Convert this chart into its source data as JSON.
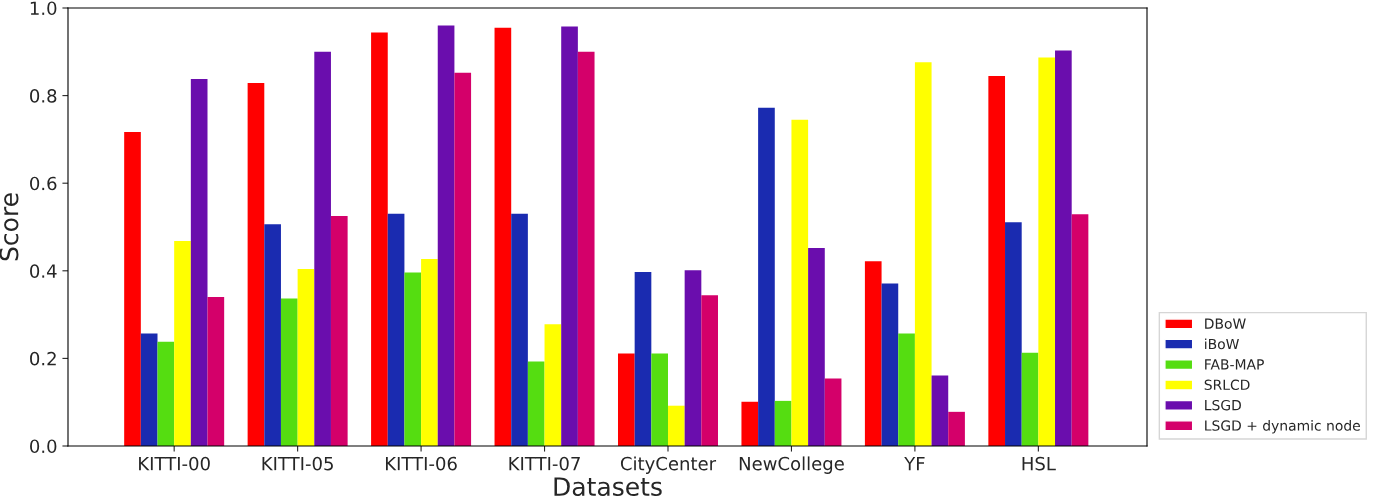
{
  "chart_data": {
    "type": "bar",
    "xlabel": "Datasets",
    "ylabel": "Score",
    "categories": [
      "KITTI-00",
      "KITTI-05",
      "KITTI-06",
      "KITTI-07",
      "CityCenter",
      "NewCollege",
      "YF",
      "HSL"
    ],
    "series": [
      {
        "name": "DBoW",
        "color": "#ff0000",
        "values": [
          0.717,
          0.829,
          0.944,
          0.955,
          0.211,
          0.101,
          0.422,
          0.845
        ]
      },
      {
        "name": "iBoW",
        "color": "#1a2bb0",
        "values": [
          0.257,
          0.506,
          0.53,
          0.53,
          0.397,
          0.772,
          0.371,
          0.511
        ]
      },
      {
        "name": "FAB-MAP",
        "color": "#55dd11",
        "values": [
          0.238,
          0.337,
          0.396,
          0.193,
          0.211,
          0.103,
          0.257,
          0.213
        ]
      },
      {
        "name": "SRLCD",
        "color": "#ffff00",
        "values": [
          0.468,
          0.404,
          0.427,
          0.278,
          0.092,
          0.745,
          0.876,
          0.887
        ]
      },
      {
        "name": "LSGD",
        "color": "#6a0dad",
        "values": [
          0.838,
          0.9,
          0.96,
          0.958,
          0.401,
          0.452,
          0.161,
          0.903
        ]
      },
      {
        "name": "LSGD + dynamic node",
        "color": "#d4006a",
        "values": [
          0.34,
          0.525,
          0.852,
          0.9,
          0.344,
          0.154,
          0.078,
          0.529
        ]
      }
    ],
    "ylim": [
      0,
      1.0
    ],
    "yticks": [
      {
        "value": 0,
        "label": "0.0"
      },
      {
        "value": 0.2,
        "label": "0.2"
      },
      {
        "value": 0.4,
        "label": "0.4"
      },
      {
        "value": 0.6,
        "label": "0.6"
      },
      {
        "value": 0.8,
        "label": "0.8"
      },
      {
        "value": 1.0,
        "label": "1.0"
      }
    ],
    "grid": false,
    "legend": "bottom right"
  }
}
